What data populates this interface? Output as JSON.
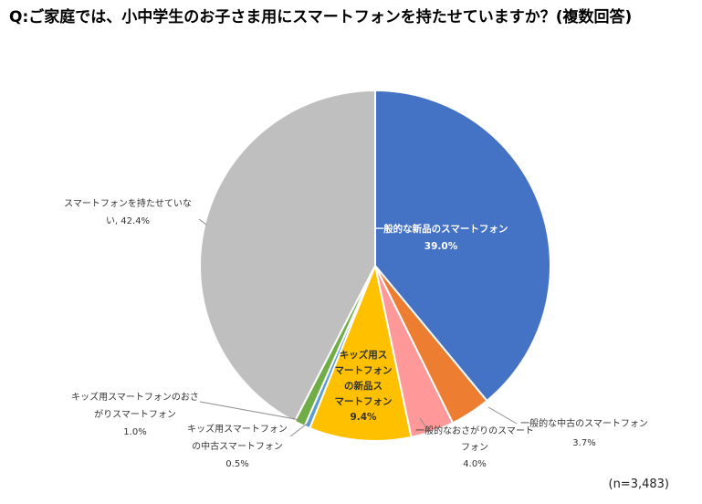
{
  "title": "Q:ご家庭では、小中学生のお子さま用にスマートフォンを持たせていますか？(複数回答)",
  "note": "(n=3,483)",
  "chart_data": {
    "type": "pie",
    "title": "Q:ご家庭では、小中学生のお子さま用にスマートフォンを持たせていますか？(複数回答)",
    "unit": "%",
    "slices": [
      {
        "label": "一般的な新品のスマートフォン",
        "value": 39.0,
        "value_label": "39.0%",
        "color": "#4472C4",
        "label_lines": [
          "一般的な新品のスマートフォン",
          "39.0%"
        ]
      },
      {
        "label": "一般的な中古のスマートフォン",
        "value": 3.7,
        "value_label": "3.7%",
        "color": "#ED7D31",
        "label_lines": [
          "一般的な中古のスマートフォン",
          "3.7%"
        ]
      },
      {
        "label": "一般的なおさがりのスマートフォン",
        "value": 4.0,
        "value_label": "4.0%",
        "color": "#FF9999",
        "label_lines": [
          "一般的なおさがりのスマート",
          "フォン",
          "4.0%"
        ]
      },
      {
        "label": "キッズ用スマートフォンの新品スマートフォン",
        "value": 9.4,
        "value_label": "9.4%",
        "color": "#FFC000",
        "label_lines": [
          "キッズ用ス",
          "マートフォン",
          "の新品ス",
          "マートフォン",
          "9.4%"
        ]
      },
      {
        "label": "キッズ用スマートフォンの中古スマートフォン",
        "value": 0.5,
        "value_label": "0.5%",
        "color": "#5B9BD5",
        "label_lines": [
          "キッズ用スマートフォン",
          "の中古スマートフォン",
          "0.5%"
        ]
      },
      {
        "label": "キッズ用スマートフォンのおさがりスマートフォン",
        "value": 1.0,
        "value_label": "1.0%",
        "color": "#70AD47",
        "label_lines": [
          "キッズ用スマートフォンのおさ",
          "がりスマートフォン",
          "1.0%"
        ]
      },
      {
        "label": "スマートフォンを持たせていない",
        "value": 42.4,
        "value_label": "42.4%",
        "color": "#BFBFBF",
        "label_lines": [
          "スマートフォンを持たせていな",
          "い, 42.4%"
        ]
      }
    ]
  }
}
